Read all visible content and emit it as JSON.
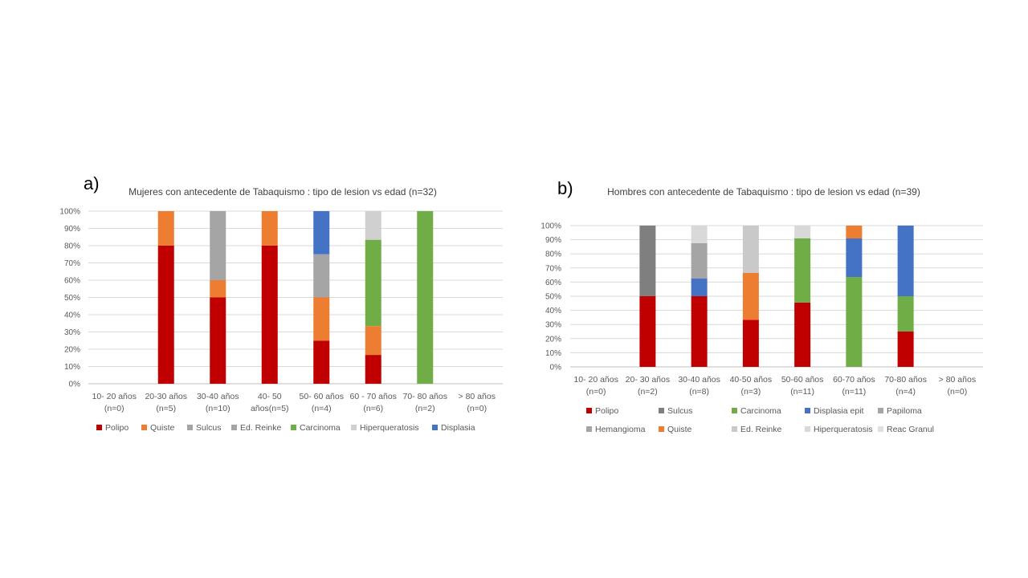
{
  "chart_data": [
    {
      "type": "bar",
      "stacked": true,
      "panel_label": "a)",
      "title": "Mujeres  con antecedente  de Tabaquismo  : tipo de lesion  vs edad (n=32)",
      "y_ticks": [
        "0%",
        "10%",
        "20%",
        "30%",
        "40%",
        "50%",
        "60%",
        "70%",
        "80%",
        "90%",
        "100%"
      ],
      "ylim": [
        0,
        100
      ],
      "grid": true,
      "legend_position": "bottom",
      "categories": [
        [
          "10- 20 años",
          "(n=0)"
        ],
        [
          "20-30 años",
          "(n=5)"
        ],
        [
          "30-40 años",
          "(n=10)"
        ],
        [
          "40- 50",
          "años(n=5)"
        ],
        [
          "50- 60 años",
          "(n=4)"
        ],
        [
          "60 - 70 años",
          "(n=6)"
        ],
        [
          "70- 80 años",
          "(n=2)"
        ],
        [
          "> 80 años",
          "(n=0)"
        ]
      ],
      "series": [
        {
          "name": "Polipo",
          "color": "#c00000",
          "values": [
            0,
            80,
            50,
            80,
            25,
            16.7,
            0,
            0
          ]
        },
        {
          "name": "Quiste",
          "color": "#ed7d31",
          "values": [
            0,
            20,
            10,
            20,
            25,
            16.7,
            0,
            0
          ]
        },
        {
          "name": "Sulcus",
          "color": "#a5a5a5",
          "values": [
            0,
            0,
            20,
            0,
            0,
            0,
            0,
            0
          ]
        },
        {
          "name": "Ed. Reinke",
          "color": "#a5a5a5",
          "values": [
            0,
            0,
            20,
            0,
            25,
            0,
            0,
            0
          ]
        },
        {
          "name": "Carcinoma",
          "color": "#70ad47",
          "values": [
            0,
            0,
            0,
            0,
            0,
            50,
            100,
            0
          ]
        },
        {
          "name": "Hiperqueratosis",
          "color": "#d0d0d0",
          "values": [
            0,
            0,
            0,
            0,
            0,
            16.7,
            0,
            0
          ]
        },
        {
          "name": "Displasia",
          "color": "#4472c4",
          "values": [
            0,
            0,
            0,
            0,
            25,
            0,
            0,
            0
          ]
        }
      ]
    },
    {
      "type": "bar",
      "stacked": true,
      "panel_label": "b)",
      "title": "Hombres  con antecedente  de Tabaquismo  : tipo de lesion  vs edad (n=39)",
      "y_ticks": [
        "0%",
        "10%",
        "20%",
        "30%",
        "40%",
        "50%",
        "60%",
        "70%",
        "80%",
        "90%",
        "100%"
      ],
      "ylim": [
        0,
        100
      ],
      "grid": true,
      "legend_position": "bottom",
      "categories": [
        [
          "10- 20 años",
          "(n=0)"
        ],
        [
          "20- 30 años",
          "(n=2)"
        ],
        [
          "30-40 años",
          "(n=8)"
        ],
        [
          "40-50 años",
          "(n=3)"
        ],
        [
          "50-60 años",
          "(n=11)"
        ],
        [
          "60-70 años",
          "(n=11)"
        ],
        [
          "70-80 años",
          "(n=4)"
        ],
        [
          "> 80 años",
          "(n=0)"
        ]
      ],
      "series": [
        {
          "name": "Polipo",
          "color": "#c00000",
          "values": [
            0,
            50,
            50,
            33.3,
            45.5,
            0,
            25,
            0
          ]
        },
        {
          "name": "Sulcus",
          "color": "#7f7f7f",
          "values": [
            0,
            50,
            0,
            0,
            0,
            0,
            0,
            0
          ]
        },
        {
          "name": "Carcinoma",
          "color": "#70ad47",
          "values": [
            0,
            0,
            0,
            0,
            45.5,
            63.6,
            25,
            0
          ]
        },
        {
          "name": "Displasia epit",
          "color": "#4472c4",
          "values": [
            0,
            0,
            12.5,
            0,
            0,
            27.3,
            50,
            0
          ]
        },
        {
          "name": "Papiloma",
          "color": "#a5a5a5",
          "values": [
            0,
            0,
            12.5,
            0,
            0,
            0,
            0,
            0
          ]
        },
        {
          "name": "Hemangioma",
          "color": "#a5a5a5",
          "values": [
            0,
            0,
            12.5,
            0,
            0,
            0,
            0,
            0
          ]
        },
        {
          "name": "Quiste",
          "color": "#ed7d31",
          "values": [
            0,
            0,
            0,
            33.3,
            0,
            9.1,
            0,
            0
          ]
        },
        {
          "name": "Ed. Reinke",
          "color": "#c9c9c9",
          "values": [
            0,
            0,
            0,
            33.3,
            0,
            0,
            0,
            0
          ]
        },
        {
          "name": "Hiperqueratosis",
          "color": "#d9d9d9",
          "values": [
            0,
            0,
            12.5,
            0,
            9.1,
            0,
            0,
            0
          ]
        },
        {
          "name": "Reac Granul",
          "color": "#e0e0e0",
          "values": [
            0,
            0,
            0,
            0,
            0,
            0,
            0,
            0
          ]
        }
      ]
    }
  ]
}
